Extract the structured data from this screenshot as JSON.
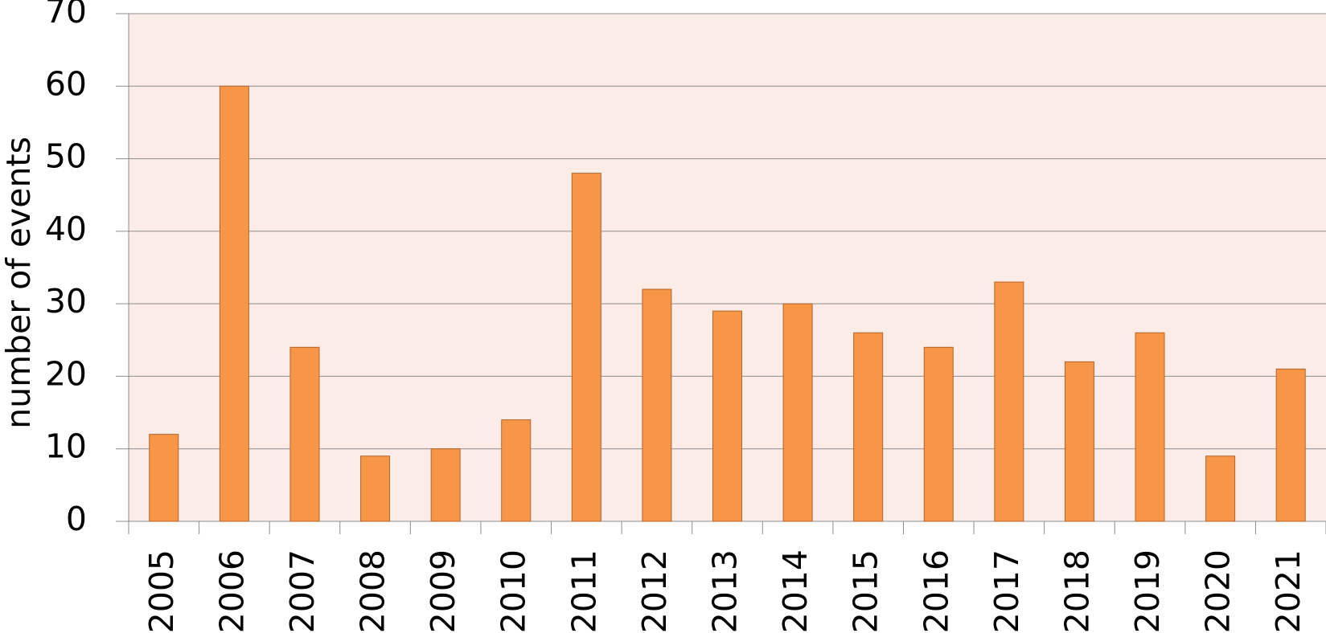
{
  "chart_data": {
    "type": "bar",
    "y_label": "number of events",
    "categories": [
      "2005",
      "2006",
      "2007",
      "2008",
      "2009",
      "2010",
      "2011",
      "2012",
      "2013",
      "2014",
      "2015",
      "2016",
      "2017",
      "2018",
      "2019",
      "2020",
      "2021"
    ],
    "values": [
      12,
      60,
      24,
      9,
      10,
      14,
      48,
      32,
      29,
      30,
      26,
      24,
      33,
      22,
      26,
      9,
      21
    ],
    "color": "#f79646",
    "ylim": [
      0,
      70
    ],
    "yticks": [
      0,
      10,
      20,
      30,
      40,
      50,
      60,
      70
    ],
    "grid": true
  }
}
